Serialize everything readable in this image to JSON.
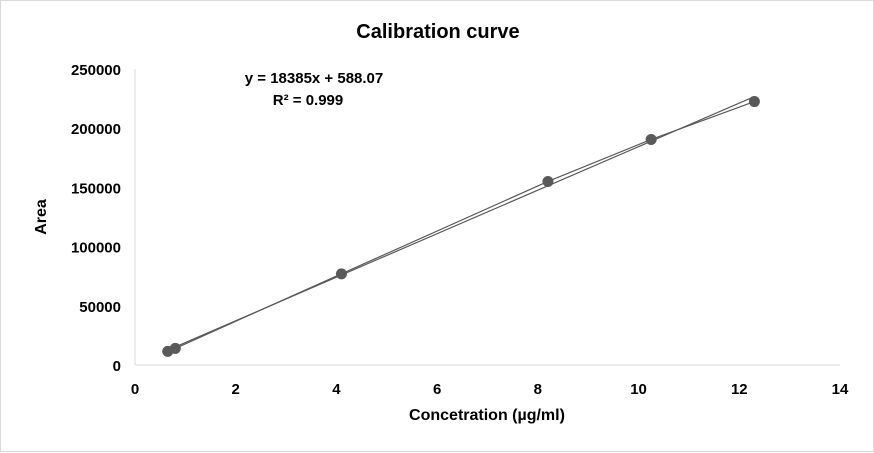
{
  "chart_data": {
    "type": "scatter",
    "title": "Calibration curve",
    "xlabel": "Concetration (µg/ml)",
    "ylabel": "Area",
    "xlim": [
      0,
      14
    ],
    "ylim": [
      0,
      250000
    ],
    "x_ticks": [
      "0",
      "2",
      "4",
      "6",
      "8",
      "10",
      "12",
      "14"
    ],
    "y_ticks": [
      "0",
      "50000",
      "100000",
      "150000",
      "200000",
      "250000"
    ],
    "grid": false,
    "legend": "none",
    "series": [
      {
        "x": [
          0.65,
          0.8,
          4.1,
          8.2,
          10.25,
          12.3
        ],
        "y": [
          11500,
          14000,
          77000,
          155000,
          190500,
          222500
        ],
        "connected": true,
        "color": "#595959"
      }
    ],
    "trendline": {
      "type": "linear",
      "slope": 18385,
      "intercept": 588.07,
      "x_range": [
        0.65,
        12.3
      ],
      "color": "#595959"
    },
    "annotations": {
      "equation": "y = 18385x + 588.07",
      "r_squared": "R² = 0.999"
    }
  }
}
